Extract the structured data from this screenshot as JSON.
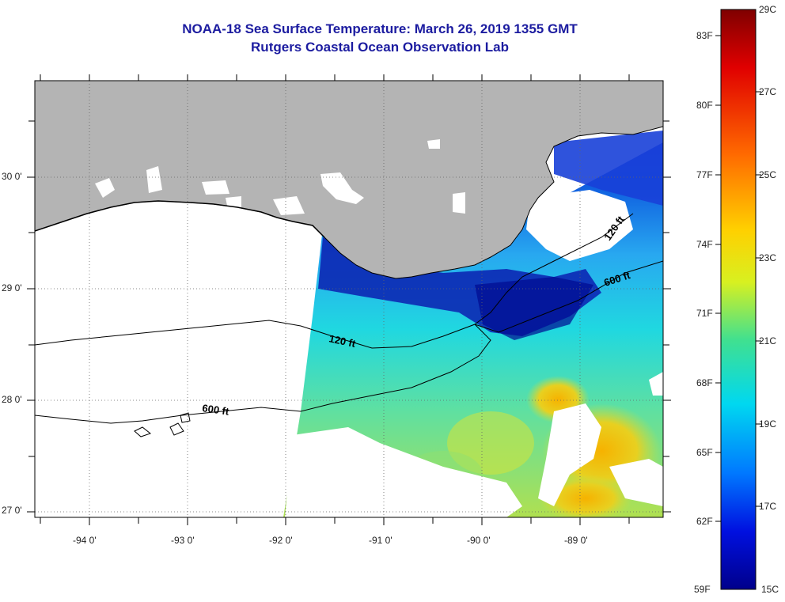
{
  "title": "NOAA-18 Sea Surface Temperature:  March 26, 2019 1355 GMT",
  "subtitle": "Rutgers Coastal Ocean Observation Lab",
  "map": {
    "lon_range": [
      -94.5,
      -88.25
    ],
    "lat_range": [
      26.95,
      30.85
    ],
    "lon_ticks": [
      {
        "value": -94,
        "label": "-94 0'"
      },
      {
        "value": -93,
        "label": "-93 0'"
      },
      {
        "value": -92,
        "label": "-92 0'"
      },
      {
        "value": -91,
        "label": "-91 0'"
      },
      {
        "value": -90,
        "label": "-90 0'"
      },
      {
        "value": -89,
        "label": "-89 0'"
      }
    ],
    "lat_ticks": [
      {
        "value": 30,
        "label": "30 0'"
      },
      {
        "value": 29,
        "label": "29 0'"
      },
      {
        "value": 28,
        "label": "28 0'"
      },
      {
        "value": 27,
        "label": "27 0'"
      }
    ],
    "contour_labels": [
      {
        "text": "120 ft",
        "at": "south of Atchafalaya Bay"
      },
      {
        "text": "600 ft",
        "at": "southwest shelf edge"
      },
      {
        "text": "120 ft",
        "at": "east of Mississippi delta"
      },
      {
        "text": "600 ft",
        "at": "southeast of Mississippi delta"
      }
    ],
    "land_color": "#b4b4b4",
    "cloud_color": "#ffffff"
  },
  "colorbar": {
    "celsius_labels": [
      "29C",
      "27C",
      "25C",
      "23C",
      "21C",
      "19C",
      "17C",
      "15C"
    ],
    "fahrenheit_labels": [
      "83F",
      "80F",
      "77F",
      "74F",
      "71F",
      "68F",
      "65F",
      "62F",
      "59F"
    ],
    "range_c": [
      15,
      29
    ],
    "colors_top_to_bottom": [
      "#7f0000",
      "#ff0000",
      "#ff8c00",
      "#ffff00",
      "#7fff7f",
      "#00ffff",
      "#0080ff",
      "#0000ff",
      "#00008b"
    ]
  }
}
